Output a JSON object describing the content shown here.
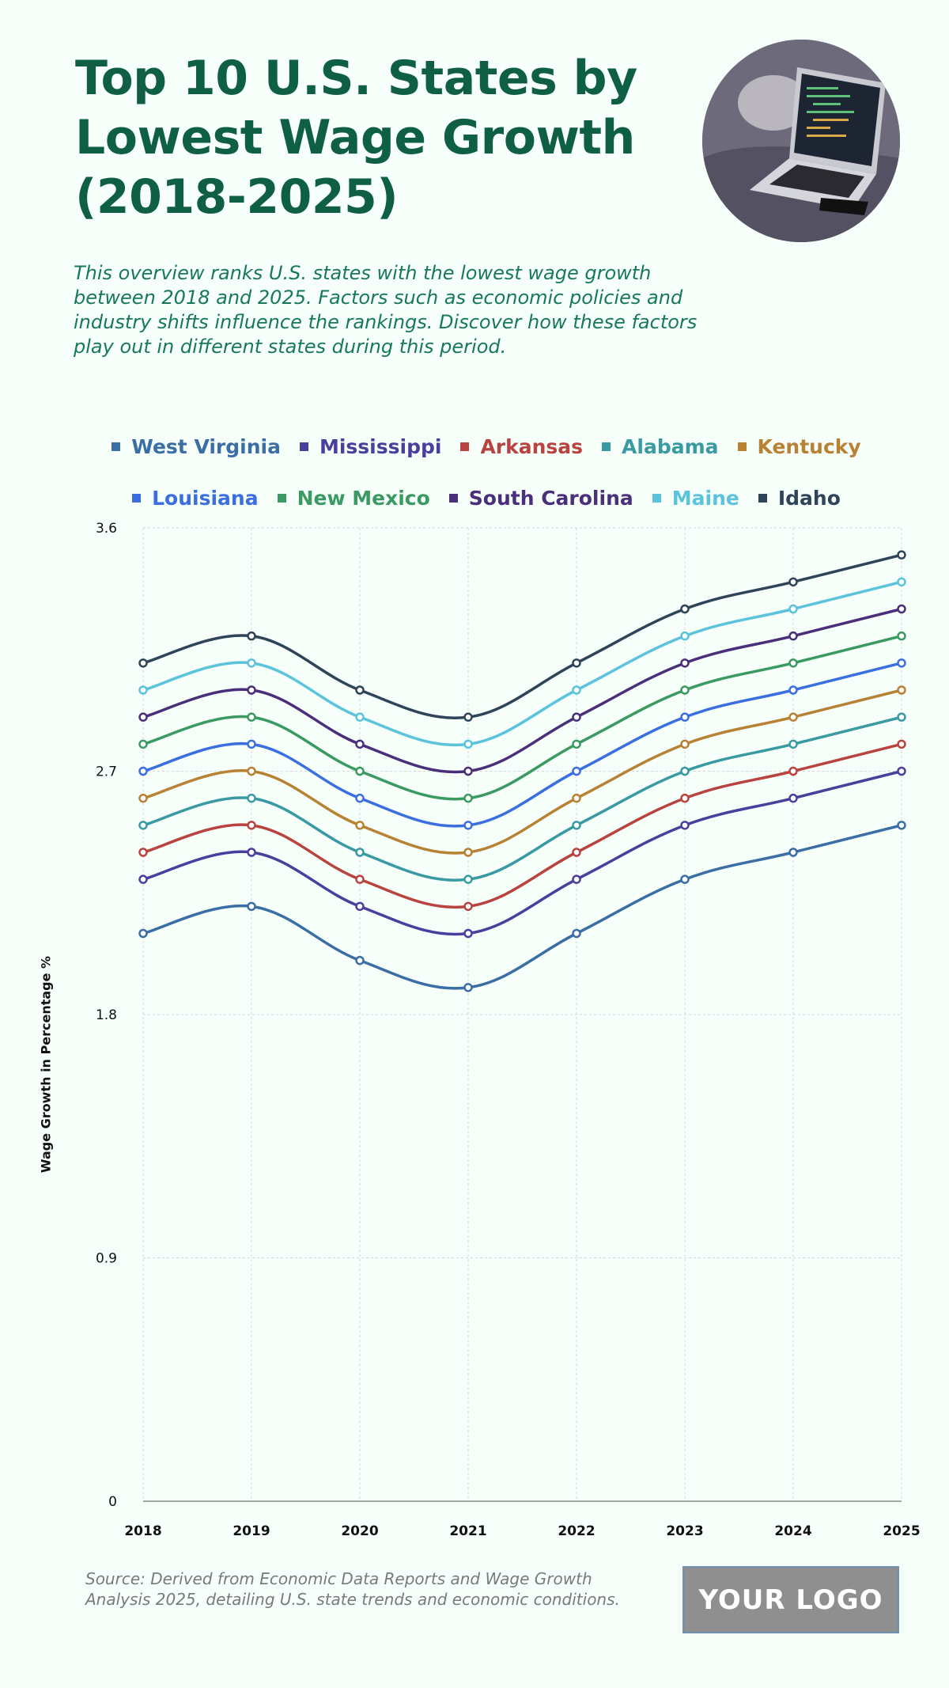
{
  "header": {
    "title": "Top 10 U.S. States by Lowest Wage Growth (2018-2025)",
    "subtitle": "This overview ranks U.S. states with the lowest wage growth between 2018 and 2025. Factors such as economic policies and industry shifts influence the rankings. Discover how these factors play out in different states during this period."
  },
  "footer": {
    "source": "Source: Derived from Economic Data Reports and Wage Growth Analysis 2025, detailing U.S. state trends and economic conditions.",
    "logo_text": "YOUR LOGO"
  },
  "icons": {
    "photo": "laptop-on-couch-image"
  },
  "chart_data": {
    "type": "line",
    "title": "Top 10 U.S. States by Lowest Wage Growth (2018-2025)",
    "xlabel": "",
    "ylabel": "Wage Growth in Percentage %",
    "ylim": [
      0,
      3.6
    ],
    "yticks": [
      "0",
      "0.9",
      "1.8",
      "2.7",
      "3.6"
    ],
    "ytick_values": [
      0,
      0.9,
      1.8,
      2.7,
      3.6
    ],
    "x": [
      "2018",
      "2019",
      "2020",
      "2021",
      "2022",
      "2023",
      "2024",
      "2025"
    ],
    "grid": true,
    "legend_position": "top",
    "series": [
      {
        "name": "West Virginia",
        "color": "#3a6ea5",
        "values": [
          2.1,
          2.2,
          2.0,
          1.9,
          2.1,
          2.3,
          2.4,
          2.5
        ]
      },
      {
        "name": "Mississippi",
        "color": "#4b3f9e",
        "values": [
          2.3,
          2.4,
          2.2,
          2.1,
          2.3,
          2.5,
          2.6,
          2.7
        ]
      },
      {
        "name": "Arkansas",
        "color": "#b8433f",
        "values": [
          2.4,
          2.5,
          2.3,
          2.2,
          2.4,
          2.6,
          2.7,
          2.8
        ]
      },
      {
        "name": "Alabama",
        "color": "#3a9aa3",
        "values": [
          2.5,
          2.6,
          2.4,
          2.3,
          2.5,
          2.7,
          2.8,
          2.9
        ]
      },
      {
        "name": "Kentucky",
        "color": "#b88235",
        "values": [
          2.6,
          2.7,
          2.5,
          2.4,
          2.6,
          2.8,
          2.9,
          3.0
        ]
      },
      {
        "name": "Louisiana",
        "color": "#3b6fe0",
        "values": [
          2.7,
          2.8,
          2.6,
          2.5,
          2.7,
          2.9,
          3.0,
          3.1
        ]
      },
      {
        "name": "New Mexico",
        "color": "#3a9a62",
        "values": [
          2.8,
          2.9,
          2.7,
          2.6,
          2.8,
          3.0,
          3.1,
          3.2
        ]
      },
      {
        "name": "South Carolina",
        "color": "#4a2f7a",
        "values": [
          2.9,
          3.0,
          2.8,
          2.7,
          2.9,
          3.1,
          3.2,
          3.3
        ]
      },
      {
        "name": "Maine",
        "color": "#5bc3dc",
        "values": [
          3.0,
          3.1,
          2.9,
          2.8,
          3.0,
          3.2,
          3.3,
          3.4
        ]
      },
      {
        "name": "Idaho",
        "color": "#2f4458",
        "values": [
          3.1,
          3.2,
          3.0,
          2.9,
          3.1,
          3.3,
          3.4,
          3.5
        ]
      }
    ]
  }
}
